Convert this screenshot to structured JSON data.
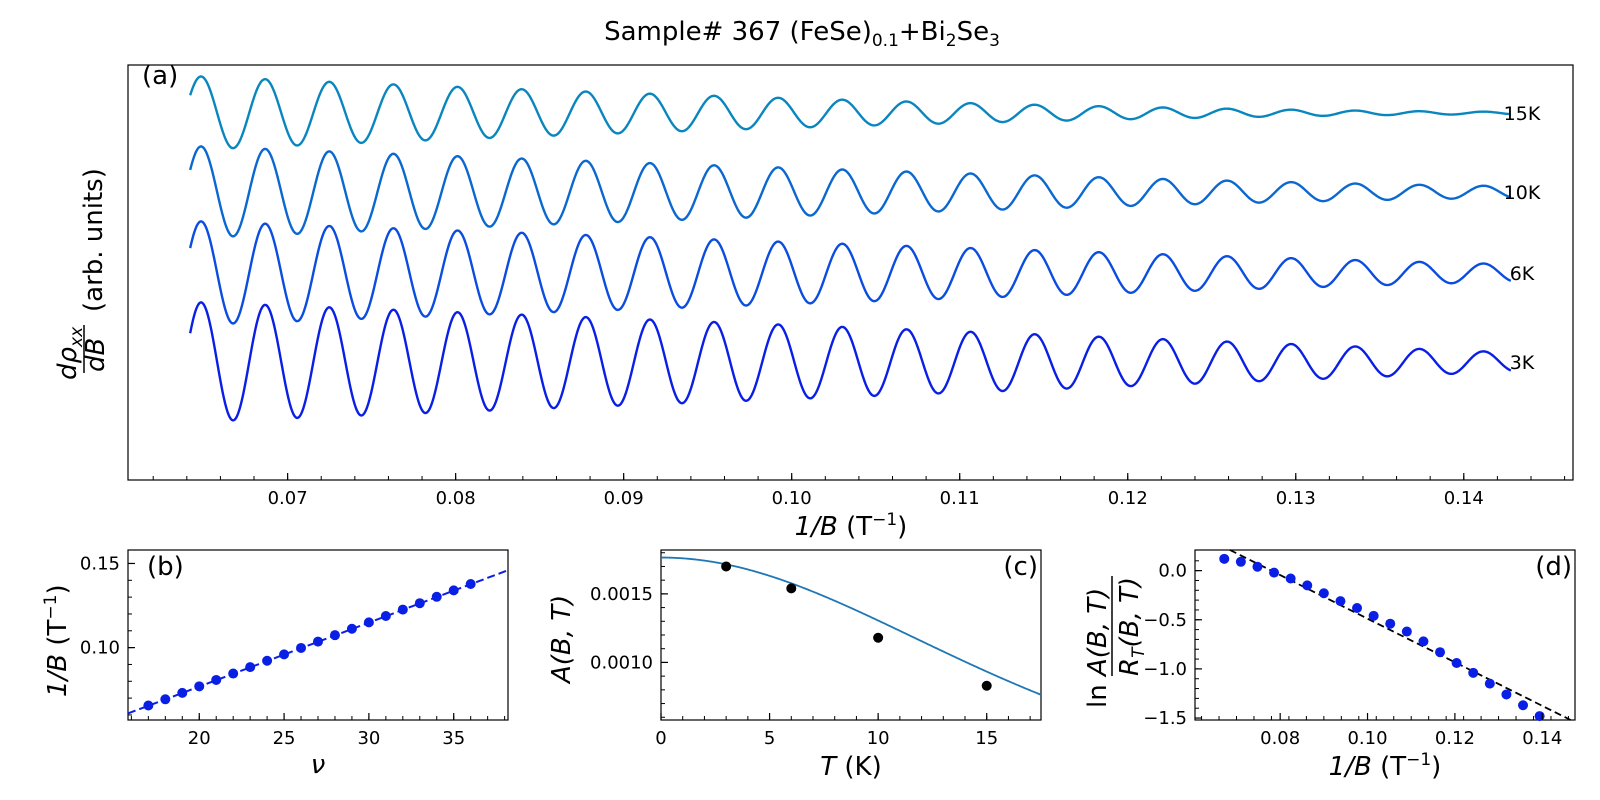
{
  "figure": {
    "title_main": "Sample# 367 (FeSe)",
    "title_sub1": "0.1",
    "title_mid": "+Bi",
    "title_sub2": "2",
    "title_mid2": "Se",
    "title_sub3": "3"
  },
  "chart_data": [
    {
      "id": "a",
      "type": "line",
      "panel_label": "(a)",
      "xlabel_var": "1/B",
      "xlabel_unit": "(T",
      "xlabel_sup": "−1",
      "xlabel_close": ")",
      "ylabel_num": "dρ",
      "ylabel_sub": "xx",
      "ylabel_den": "dB",
      "ylabel_suffix": "(arb. units)",
      "xlim": [
        0.0605,
        0.1465
      ],
      "xticks": [
        "0.07",
        "0.08",
        "0.09",
        "0.10",
        "0.11",
        "0.12",
        "0.13",
        "0.14"
      ],
      "x_range": [
        0.0642,
        0.1428
      ],
      "frequency": 262,
      "series": [
        {
          "name": "15K",
          "color": "#0a86bf",
          "amp_start": 1.0,
          "amp_end": 0.035,
          "decay_pow": 1.6
        },
        {
          "name": "10K",
          "color": "#0a68d0",
          "amp_start": 1.0,
          "amp_end": 0.13,
          "decay_pow": 1.3
        },
        {
          "name": "6K",
          "color": "#0a4de0",
          "amp_start": 1.0,
          "amp_end": 0.17,
          "decay_pow": 1.1
        },
        {
          "name": "3K",
          "color": "#0a1fe6",
          "amp_start": 1.0,
          "amp_end": 0.16,
          "decay_pow": 1.0
        }
      ]
    },
    {
      "id": "b",
      "type": "scatter",
      "panel_label": "(b)",
      "xlabel": "ν",
      "ylabel_var": "1/B",
      "ylabel_unit": "(T",
      "ylabel_sup": "−1",
      "ylabel_close": ")",
      "xlim": [
        15.8,
        38.2
      ],
      "ylim": [
        0.057,
        0.158
      ],
      "xticks": [
        "20",
        "25",
        "30",
        "35"
      ],
      "yticks": [
        "0.10",
        "0.15"
      ],
      "x": [
        17,
        18,
        19,
        20,
        21,
        22,
        23,
        24,
        25,
        26,
        27,
        28,
        29,
        30,
        31,
        32,
        33,
        34,
        35,
        36
      ],
      "y": [
        0.0656,
        0.0693,
        0.0731,
        0.077,
        0.0808,
        0.0846,
        0.0884,
        0.0922,
        0.096,
        0.0998,
        0.1036,
        0.1074,
        0.1112,
        0.115,
        0.1188,
        0.1226,
        0.1264,
        0.1302,
        0.134,
        0.1378
      ],
      "fit": {
        "x": [
          15.8,
          38.2
        ],
        "y": [
          0.0609,
          0.146
        ]
      },
      "color": "#0a1fe6"
    },
    {
      "id": "c",
      "type": "scatter",
      "panel_label": "(c)",
      "xlabel_var": "T",
      "xlabel_unit": "(K)",
      "ylabel": "A(B, T)",
      "xlim": [
        0,
        17.5
      ],
      "ylim": [
        0.00058,
        0.00182
      ],
      "xticks": [
        "0",
        "5",
        "10",
        "15"
      ],
      "yticks": [
        "0.0010",
        "0.0015"
      ],
      "x": [
        3,
        6,
        10,
        15
      ],
      "y": [
        0.0017,
        0.00154,
        0.00118,
        0.00083
      ],
      "fit": {
        "A0": 0.001765,
        "alpha": 0.1385
      },
      "color": "#000000",
      "fit_color": "#1f77b4"
    },
    {
      "id": "d",
      "type": "scatter",
      "panel_label": "(d)",
      "xlabel_var": "1/B",
      "xlabel_unit": "(T",
      "xlabel_sup": "−1",
      "xlabel_close": ")",
      "ylabel_ln": "ln",
      "ylabel_num": "A(B, T)",
      "ylabel_den": "R",
      "ylabel_den_sub": "T",
      "ylabel_den_rest": "(B, T)",
      "xlim": [
        0.0605,
        0.1475
      ],
      "ylim": [
        -1.52,
        0.21
      ],
      "xticks": [
        "0.08",
        "0.10",
        "0.12",
        "0.14"
      ],
      "yticks": [
        "0.0",
        "−0.5",
        "−1.0",
        "−1.5"
      ],
      "x": [
        0.0672,
        0.071,
        0.0748,
        0.0786,
        0.0824,
        0.0862,
        0.09,
        0.0938,
        0.0976,
        0.1014,
        0.1052,
        0.109,
        0.1128,
        0.1166,
        0.1204,
        0.1242,
        0.128,
        0.1318,
        0.1356,
        0.1394
      ],
      "y": [
        0.12,
        0.09,
        0.04,
        -0.02,
        -0.08,
        -0.15,
        -0.23,
        -0.31,
        -0.38,
        -0.46,
        -0.54,
        -0.62,
        -0.72,
        -0.83,
        -0.94,
        -1.04,
        -1.15,
        -1.26,
        -1.37,
        -1.48
      ],
      "fit": {
        "x": [
          0.0685,
          0.1465
        ],
        "y": [
          0.21,
          -1.52
        ]
      },
      "color": "#0a1fe6"
    }
  ]
}
